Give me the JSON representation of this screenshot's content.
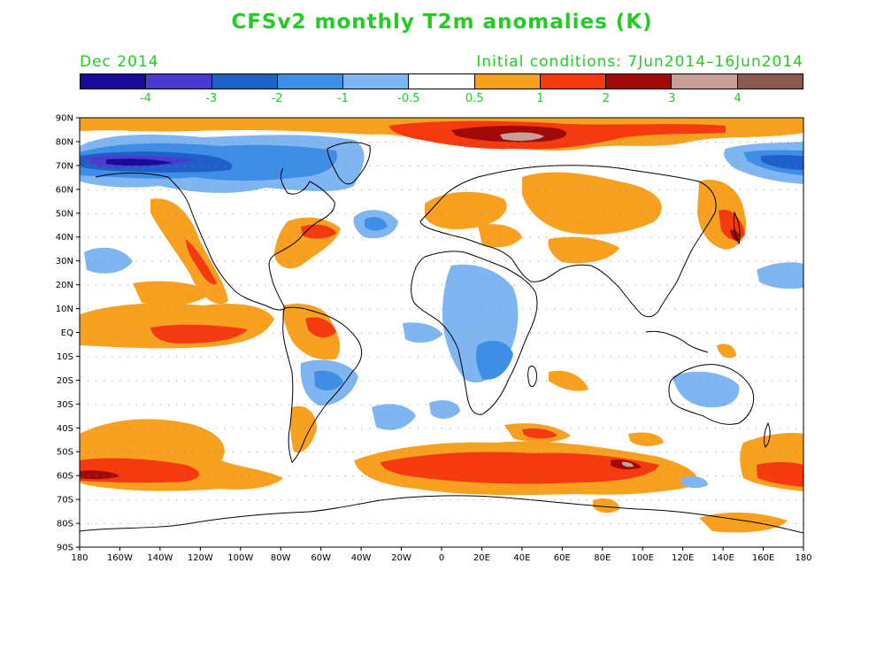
{
  "header": {
    "title": "CFSv2 monthly T2m anomalies (K)",
    "month": "Dec 2014",
    "initial_conditions": "Initial conditions: 7Jun2014–16Jun2014"
  },
  "colorbar": {
    "colors": [
      "#1a0a9a",
      "#4a3ad0",
      "#1f5fc8",
      "#3f8ee6",
      "#7fb6f2",
      "#ffffff",
      "#f8a020",
      "#f53a10",
      "#a00a0a",
      "#c8a098",
      "#8a5a50"
    ],
    "labels": [
      "-4",
      "-3",
      "-2",
      "-1",
      "-0.5",
      "0.5",
      "1",
      "2",
      "3",
      "4"
    ]
  },
  "axes": {
    "lat_labels": [
      "90N",
      "80N",
      "70N",
      "60N",
      "50N",
      "40N",
      "30N",
      "20N",
      "10N",
      "EQ",
      "10S",
      "20S",
      "30S",
      "40S",
      "50S",
      "60S",
      "70S",
      "80S",
      "90S"
    ],
    "lon_labels": [
      "180",
      "160W",
      "140W",
      "120W",
      "100W",
      "80W",
      "60W",
      "40W",
      "20W",
      "0",
      "20E",
      "40E",
      "60E",
      "80E",
      "100E",
      "120E",
      "140E",
      "160E",
      "180"
    ]
  }
}
